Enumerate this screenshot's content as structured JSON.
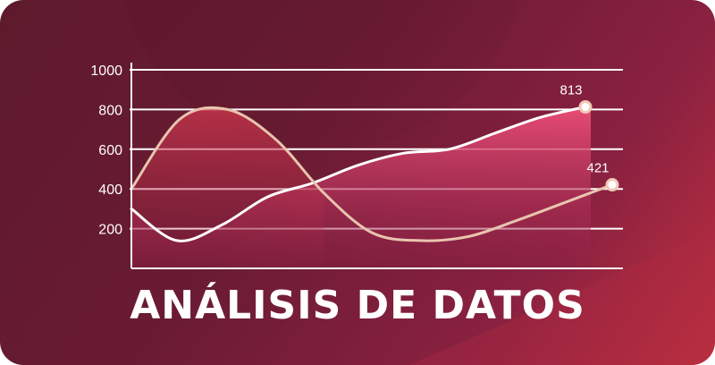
{
  "title": "ANÁLISIS DE DATOS",
  "colors": {
    "background": "#6a1b33",
    "area_fill": "#e0476e",
    "line_light": "#e9c4ae",
    "line_white": "#ffffff",
    "grid": "#ffffff"
  },
  "chart_data": {
    "type": "line",
    "title": "ANÁLISIS DE DATOS",
    "xlabel": "",
    "ylabel": "",
    "ylim": [
      0,
      1000
    ],
    "yticks": [
      200,
      400,
      600,
      800,
      1000
    ],
    "grid": true,
    "series": [
      {
        "style": "curve",
        "x": [
          0,
          1,
          2,
          3,
          4,
          5,
          6,
          7,
          8,
          9,
          10
        ],
        "values": [
          400,
          750,
          800,
          650,
          380,
          180,
          140,
          160,
          240,
          330,
          421
        ],
        "end_label": "421"
      },
      {
        "style": "filled-area",
        "x": [
          0,
          1,
          2,
          3,
          4,
          5,
          6,
          7,
          8,
          9,
          10
        ],
        "values": [
          300,
          140,
          220,
          360,
          430,
          520,
          580,
          600,
          680,
          760,
          813
        ],
        "end_label": "813"
      }
    ]
  }
}
